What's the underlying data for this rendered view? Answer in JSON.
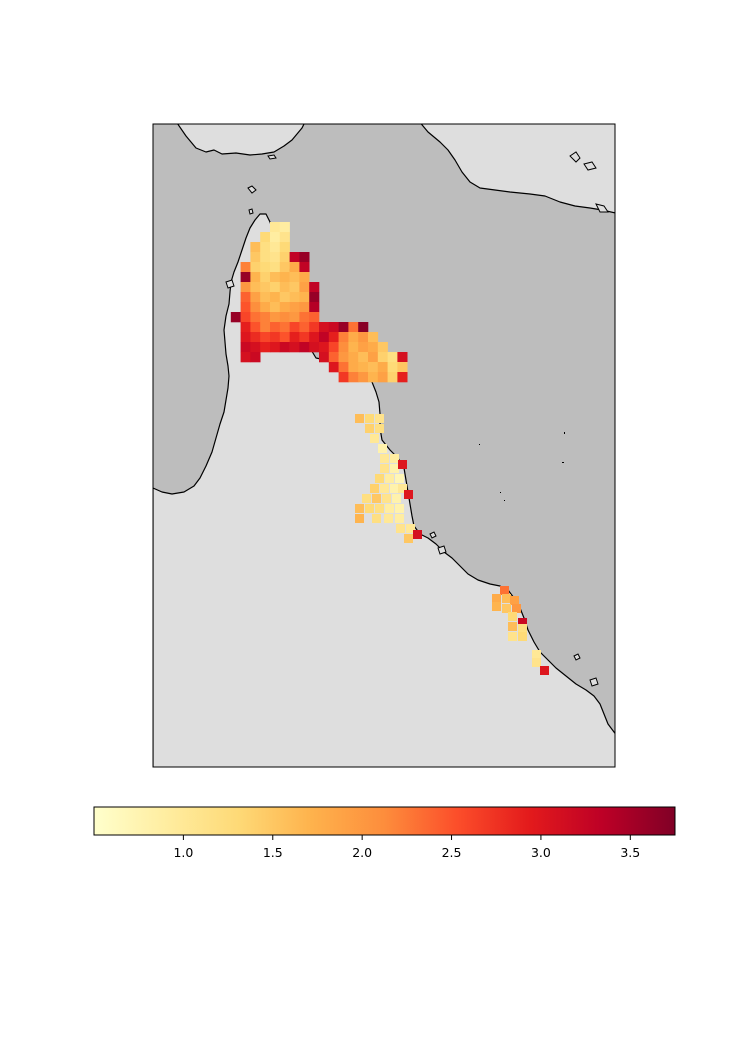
{
  "map": {
    "colors": {
      "ocean": "#bdbdbd",
      "land": "#dedede",
      "coastline": "#000000",
      "frame": "#000000"
    },
    "grid": {
      "cell_deg": 0.25,
      "columns": 20,
      "rows": 28,
      "comment": "values per grid cell; null = no data"
    }
  },
  "colorbar": {
    "colormap": "YlOrRd",
    "min": 0.5,
    "max": 3.75,
    "ticks": [
      {
        "value": 1.0,
        "label": "1.0"
      },
      {
        "value": 1.5,
        "label": "1.5"
      },
      {
        "value": 2.0,
        "label": "2.0"
      },
      {
        "value": 2.5,
        "label": "2.5"
      },
      {
        "value": 3.0,
        "label": "3.0"
      },
      {
        "value": 3.5,
        "label": "3.5"
      }
    ],
    "stops": [
      "#ffffcc",
      "#ffeda0",
      "#fed976",
      "#feb24c",
      "#fd8d3c",
      "#fc4e2a",
      "#e31a1c",
      "#bd0026",
      "#800026"
    ]
  },
  "heat_cells": [
    {
      "c": 5,
      "r": 0,
      "v": 1.0
    },
    {
      "c": 6,
      "r": 0,
      "v": 0.9
    },
    {
      "c": 4,
      "r": 1,
      "v": 1.3
    },
    {
      "c": 5,
      "r": 1,
      "v": 0.9
    },
    {
      "c": 6,
      "r": 1,
      "v": 1.1
    },
    {
      "c": 3,
      "r": 2,
      "v": 1.6
    },
    {
      "c": 4,
      "r": 2,
      "v": 1.2
    },
    {
      "c": 5,
      "r": 2,
      "v": 1.0
    },
    {
      "c": 6,
      "r": 2,
      "v": 1.3
    },
    {
      "c": 3,
      "r": 3,
      "v": 1.5
    },
    {
      "c": 4,
      "r": 3,
      "v": 1.2
    },
    {
      "c": 5,
      "r": 3,
      "v": 1.1
    },
    {
      "c": 6,
      "r": 3,
      "v": 1.4
    },
    {
      "c": 7,
      "r": 3,
      "v": 3.3
    },
    {
      "c": 8,
      "r": 3,
      "v": 3.6
    },
    {
      "c": 2,
      "r": 4,
      "v": 2.2
    },
    {
      "c": 3,
      "r": 4,
      "v": 1.4
    },
    {
      "c": 4,
      "r": 4,
      "v": 1.3
    },
    {
      "c": 5,
      "r": 4,
      "v": 1.2
    },
    {
      "c": 6,
      "r": 4,
      "v": 1.5
    },
    {
      "c": 7,
      "r": 4,
      "v": 1.8
    },
    {
      "c": 8,
      "r": 4,
      "v": 3.3
    },
    {
      "c": 2,
      "r": 5,
      "v": 3.6
    },
    {
      "c": 3,
      "r": 5,
      "v": 1.7
    },
    {
      "c": 4,
      "r": 5,
      "v": 1.4
    },
    {
      "c": 5,
      "r": 5,
      "v": 1.6
    },
    {
      "c": 6,
      "r": 5,
      "v": 1.7
    },
    {
      "c": 7,
      "r": 5,
      "v": 1.6
    },
    {
      "c": 8,
      "r": 5,
      "v": 1.8
    },
    {
      "c": 2,
      "r": 6,
      "v": 2.0
    },
    {
      "c": 3,
      "r": 6,
      "v": 1.6
    },
    {
      "c": 4,
      "r": 6,
      "v": 1.5
    },
    {
      "c": 5,
      "r": 6,
      "v": 1.4
    },
    {
      "c": 6,
      "r": 6,
      "v": 1.6
    },
    {
      "c": 7,
      "r": 6,
      "v": 1.5
    },
    {
      "c": 8,
      "r": 6,
      "v": 1.9
    },
    {
      "c": 9,
      "r": 6,
      "v": 3.3
    },
    {
      "c": 2,
      "r": 7,
      "v": 2.4
    },
    {
      "c": 3,
      "r": 7,
      "v": 1.9
    },
    {
      "c": 4,
      "r": 7,
      "v": 1.6
    },
    {
      "c": 5,
      "r": 7,
      "v": 1.7
    },
    {
      "c": 6,
      "r": 7,
      "v": 1.5
    },
    {
      "c": 7,
      "r": 7,
      "v": 1.6
    },
    {
      "c": 8,
      "r": 7,
      "v": 1.7
    },
    {
      "c": 9,
      "r": 7,
      "v": 3.6
    },
    {
      "c": 2,
      "r": 8,
      "v": 2.5
    },
    {
      "c": 3,
      "r": 8,
      "v": 2.1
    },
    {
      "c": 4,
      "r": 8,
      "v": 1.8
    },
    {
      "c": 5,
      "r": 8,
      "v": 1.6
    },
    {
      "c": 6,
      "r": 8,
      "v": 1.8
    },
    {
      "c": 7,
      "r": 8,
      "v": 1.9
    },
    {
      "c": 8,
      "r": 8,
      "v": 2.0
    },
    {
      "c": 9,
      "r": 8,
      "v": 3.4
    },
    {
      "c": 1,
      "r": 9,
      "v": 3.6
    },
    {
      "c": 2,
      "r": 9,
      "v": 2.6
    },
    {
      "c": 3,
      "r": 9,
      "v": 2.3
    },
    {
      "c": 4,
      "r": 9,
      "v": 2.2
    },
    {
      "c": 5,
      "r": 9,
      "v": 2.0
    },
    {
      "c": 6,
      "r": 9,
      "v": 2.1
    },
    {
      "c": 7,
      "r": 9,
      "v": 2.0
    },
    {
      "c": 8,
      "r": 9,
      "v": 2.3
    },
    {
      "c": 9,
      "r": 9,
      "v": 2.4
    },
    {
      "c": 2,
      "r": 10,
      "v": 2.9
    },
    {
      "c": 3,
      "r": 10,
      "v": 2.5
    },
    {
      "c": 4,
      "r": 10,
      "v": 2.2
    },
    {
      "c": 5,
      "r": 10,
      "v": 2.4
    },
    {
      "c": 6,
      "r": 10,
      "v": 2.3
    },
    {
      "c": 7,
      "r": 10,
      "v": 2.6
    },
    {
      "c": 8,
      "r": 10,
      "v": 2.4
    },
    {
      "c": 9,
      "r": 10,
      "v": 2.7
    },
    {
      "c": 10,
      "r": 10,
      "v": 3.1
    },
    {
      "c": 11,
      "r": 10,
      "v": 3.2
    },
    {
      "c": 12,
      "r": 10,
      "v": 3.6
    },
    {
      "c": 13,
      "r": 10,
      "v": 2.3
    },
    {
      "c": 14,
      "r": 10,
      "v": 3.7
    },
    {
      "c": 2,
      "r": 11,
      "v": 3.0
    },
    {
      "c": 3,
      "r": 11,
      "v": 2.8
    },
    {
      "c": 4,
      "r": 11,
      "v": 2.6
    },
    {
      "c": 5,
      "r": 11,
      "v": 2.7
    },
    {
      "c": 6,
      "r": 11,
      "v": 2.5
    },
    {
      "c": 7,
      "r": 11,
      "v": 2.9
    },
    {
      "c": 8,
      "r": 11,
      "v": 2.7
    },
    {
      "c": 9,
      "r": 11,
      "v": 3.0
    },
    {
      "c": 10,
      "r": 11,
      "v": 3.3
    },
    {
      "c": 11,
      "r": 11,
      "v": 2.9
    },
    {
      "c": 12,
      "r": 11,
      "v": 2.2
    },
    {
      "c": 13,
      "r": 11,
      "v": 1.8
    },
    {
      "c": 14,
      "r": 11,
      "v": 2.0
    },
    {
      "c": 15,
      "r": 11,
      "v": 1.6
    },
    {
      "c": 2,
      "r": 12,
      "v": 3.2
    },
    {
      "c": 3,
      "r": 12,
      "v": 3.1
    },
    {
      "c": 4,
      "r": 12,
      "v": 2.9
    },
    {
      "c": 5,
      "r": 12,
      "v": 3.0
    },
    {
      "c": 6,
      "r": 12,
      "v": 3.2
    },
    {
      "c": 7,
      "r": 12,
      "v": 3.1
    },
    {
      "c": 8,
      "r": 12,
      "v": 3.3
    },
    {
      "c": 9,
      "r": 12,
      "v": 3.1
    },
    {
      "c": 10,
      "r": 12,
      "v": 3.0
    },
    {
      "c": 11,
      "r": 12,
      "v": 2.6
    },
    {
      "c": 12,
      "r": 12,
      "v": 2.1
    },
    {
      "c": 13,
      "r": 12,
      "v": 1.7
    },
    {
      "c": 14,
      "r": 12,
      "v": 1.9
    },
    {
      "c": 15,
      "r": 12,
      "v": 1.8
    },
    {
      "c": 16,
      "r": 12,
      "v": 1.5
    },
    {
      "c": 2,
      "r": 13,
      "v": 3.1
    },
    {
      "c": 3,
      "r": 13,
      "v": 3.2
    },
    {
      "c": 10,
      "r": 13,
      "v": 3.1
    },
    {
      "c": 11,
      "r": 13,
      "v": 2.4
    },
    {
      "c": 12,
      "r": 13,
      "v": 2.0
    },
    {
      "c": 13,
      "r": 13,
      "v": 1.8
    },
    {
      "c": 14,
      "r": 13,
      "v": 1.6
    },
    {
      "c": 15,
      "r": 13,
      "v": 1.9
    },
    {
      "c": 16,
      "r": 13,
      "v": 1.4
    },
    {
      "c": 17,
      "r": 13,
      "v": 1.2
    },
    {
      "c": 18,
      "r": 13,
      "v": 3.1
    },
    {
      "c": 11,
      "r": 14,
      "v": 3.0
    },
    {
      "c": 12,
      "r": 14,
      "v": 2.3
    },
    {
      "c": 13,
      "r": 14,
      "v": 1.8
    },
    {
      "c": 14,
      "r": 14,
      "v": 1.7
    },
    {
      "c": 15,
      "r": 14,
      "v": 1.6
    },
    {
      "c": 16,
      "r": 14,
      "v": 1.8
    },
    {
      "c": 17,
      "r": 14,
      "v": 1.3
    },
    {
      "c": 18,
      "r": 14,
      "v": 1.5
    },
    {
      "c": 12,
      "r": 15,
      "v": 2.7
    },
    {
      "c": 13,
      "r": 15,
      "v": 2.2
    },
    {
      "c": 14,
      "r": 15,
      "v": 2.0
    },
    {
      "c": 15,
      "r": 15,
      "v": 1.7
    },
    {
      "c": 16,
      "r": 15,
      "v": 1.9
    },
    {
      "c": 17,
      "r": 15,
      "v": 1.4
    },
    {
      "c": 18,
      "r": 15,
      "v": 2.9
    }
  ],
  "heat_cells_south": [
    {
      "x": 355,
      "y": 414,
      "v": 1.6
    },
    {
      "x": 365,
      "y": 414,
      "v": 1.3
    },
    {
      "x": 375,
      "y": 414,
      "v": 1.1
    },
    {
      "x": 365,
      "y": 424,
      "v": 1.4
    },
    {
      "x": 375,
      "y": 424,
      "v": 1.2
    },
    {
      "x": 370,
      "y": 434,
      "v": 1.0
    },
    {
      "x": 378,
      "y": 444,
      "v": 0.8
    },
    {
      "x": 380,
      "y": 454,
      "v": 1.0
    },
    {
      "x": 390,
      "y": 454,
      "v": 0.9
    },
    {
      "x": 380,
      "y": 464,
      "v": 1.1
    },
    {
      "x": 390,
      "y": 464,
      "v": 0.8
    },
    {
      "x": 398,
      "y": 460,
      "v": 3.0
    },
    {
      "x": 375,
      "y": 474,
      "v": 1.3
    },
    {
      "x": 385,
      "y": 474,
      "v": 0.9
    },
    {
      "x": 395,
      "y": 474,
      "v": 0.7
    },
    {
      "x": 370,
      "y": 484,
      "v": 1.4
    },
    {
      "x": 380,
      "y": 484,
      "v": 1.0
    },
    {
      "x": 390,
      "y": 484,
      "v": 0.8
    },
    {
      "x": 398,
      "y": 484,
      "v": 1.0
    },
    {
      "x": 362,
      "y": 494,
      "v": 1.2
    },
    {
      "x": 372,
      "y": 494,
      "v": 1.5
    },
    {
      "x": 382,
      "y": 494,
      "v": 1.1
    },
    {
      "x": 392,
      "y": 494,
      "v": 0.8
    },
    {
      "x": 404,
      "y": 490,
      "v": 3.0
    },
    {
      "x": 355,
      "y": 504,
      "v": 1.6
    },
    {
      "x": 365,
      "y": 504,
      "v": 1.3
    },
    {
      "x": 375,
      "y": 504,
      "v": 1.2
    },
    {
      "x": 385,
      "y": 504,
      "v": 0.9
    },
    {
      "x": 395,
      "y": 504,
      "v": 0.8
    },
    {
      "x": 355,
      "y": 514,
      "v": 1.7
    },
    {
      "x": 372,
      "y": 514,
      "v": 1.2
    },
    {
      "x": 384,
      "y": 514,
      "v": 1.0
    },
    {
      "x": 395,
      "y": 514,
      "v": 0.9
    },
    {
      "x": 396,
      "y": 524,
      "v": 1.1
    },
    {
      "x": 406,
      "y": 524,
      "v": 1.0
    },
    {
      "x": 413,
      "y": 530,
      "v": 3.1
    },
    {
      "x": 404,
      "y": 534,
      "v": 1.5
    },
    {
      "x": 500,
      "y": 586,
      "v": 2.3
    },
    {
      "x": 492,
      "y": 594,
      "v": 1.8
    },
    {
      "x": 502,
      "y": 594,
      "v": 1.6
    },
    {
      "x": 510,
      "y": 596,
      "v": 1.9
    },
    {
      "x": 492,
      "y": 602,
      "v": 1.7
    },
    {
      "x": 502,
      "y": 604,
      "v": 1.5
    },
    {
      "x": 512,
      "y": 604,
      "v": 2.0
    },
    {
      "x": 508,
      "y": 612,
      "v": 1.3
    },
    {
      "x": 518,
      "y": 618,
      "v": 3.2
    },
    {
      "x": 508,
      "y": 622,
      "v": 1.6
    },
    {
      "x": 518,
      "y": 624,
      "v": 1.2
    },
    {
      "x": 508,
      "y": 632,
      "v": 1.1
    },
    {
      "x": 518,
      "y": 632,
      "v": 1.3
    },
    {
      "x": 532,
      "y": 650,
      "v": 1.0
    },
    {
      "x": 532,
      "y": 658,
      "v": 1.1
    },
    {
      "x": 540,
      "y": 666,
      "v": 3.0
    }
  ]
}
